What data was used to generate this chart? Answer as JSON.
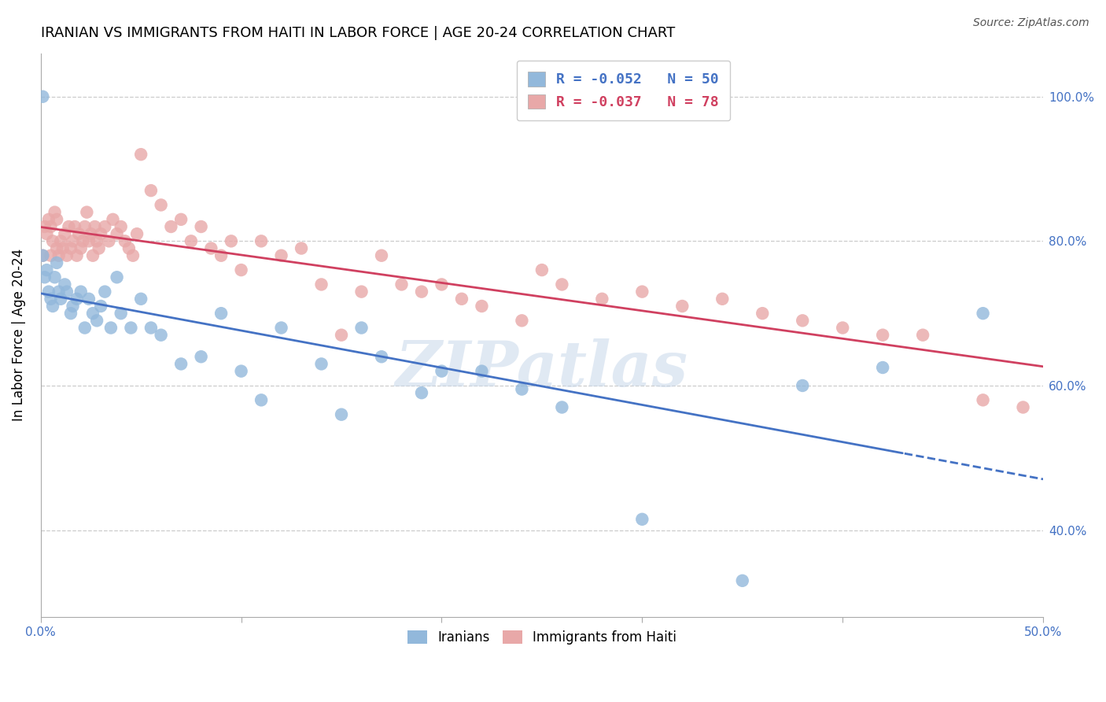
{
  "title": "IRANIAN VS IMMIGRANTS FROM HAITI IN LABOR FORCE | AGE 20-24 CORRELATION CHART",
  "source": "Source: ZipAtlas.com",
  "ylabel": "In Labor Force | Age 20-24",
  "xlim": [
    0.0,
    0.5
  ],
  "ylim": [
    0.28,
    1.06
  ],
  "legend_blue_r": "R = -0.052",
  "legend_blue_n": "N = 50",
  "legend_pink_r": "R = -0.037",
  "legend_pink_n": "N = 78",
  "blue_color": "#92b8db",
  "pink_color": "#e8a8a8",
  "blue_line_color": "#4472c4",
  "pink_line_color": "#d04060",
  "iranians_x": [
    0.001,
    0.002,
    0.003,
    0.004,
    0.005,
    0.006,
    0.007,
    0.008,
    0.009,
    0.01,
    0.012,
    0.013,
    0.015,
    0.016,
    0.018,
    0.02,
    0.022,
    0.024,
    0.026,
    0.028,
    0.03,
    0.032,
    0.035,
    0.038,
    0.04,
    0.045,
    0.05,
    0.055,
    0.06,
    0.07,
    0.08,
    0.09,
    0.1,
    0.11,
    0.12,
    0.14,
    0.15,
    0.16,
    0.17,
    0.19,
    0.2,
    0.22,
    0.24,
    0.26,
    0.3,
    0.35,
    0.38,
    0.42,
    0.47,
    0.001
  ],
  "iranians_y": [
    0.78,
    0.75,
    0.76,
    0.73,
    0.72,
    0.71,
    0.75,
    0.77,
    0.73,
    0.72,
    0.74,
    0.73,
    0.7,
    0.71,
    0.72,
    0.73,
    0.68,
    0.72,
    0.7,
    0.69,
    0.71,
    0.73,
    0.68,
    0.75,
    0.7,
    0.68,
    0.72,
    0.68,
    0.67,
    0.63,
    0.64,
    0.7,
    0.62,
    0.58,
    0.68,
    0.63,
    0.56,
    0.68,
    0.64,
    0.59,
    0.62,
    0.62,
    0.595,
    0.57,
    0.415,
    0.33,
    0.6,
    0.625,
    0.7,
    1.0
  ],
  "haiti_x": [
    0.001,
    0.002,
    0.003,
    0.004,
    0.005,
    0.005,
    0.006,
    0.007,
    0.008,
    0.008,
    0.009,
    0.01,
    0.011,
    0.012,
    0.013,
    0.014,
    0.015,
    0.016,
    0.017,
    0.018,
    0.019,
    0.02,
    0.021,
    0.022,
    0.023,
    0.024,
    0.025,
    0.026,
    0.027,
    0.028,
    0.029,
    0.03,
    0.032,
    0.034,
    0.036,
    0.038,
    0.04,
    0.042,
    0.044,
    0.046,
    0.048,
    0.05,
    0.055,
    0.06,
    0.065,
    0.07,
    0.075,
    0.08,
    0.085,
    0.09,
    0.095,
    0.1,
    0.11,
    0.12,
    0.13,
    0.14,
    0.15,
    0.16,
    0.17,
    0.18,
    0.19,
    0.2,
    0.21,
    0.22,
    0.24,
    0.25,
    0.26,
    0.28,
    0.3,
    0.32,
    0.34,
    0.36,
    0.38,
    0.4,
    0.42,
    0.44,
    0.47,
    0.49
  ],
  "haiti_y": [
    0.78,
    0.82,
    0.81,
    0.83,
    0.78,
    0.82,
    0.8,
    0.84,
    0.79,
    0.83,
    0.78,
    0.8,
    0.79,
    0.81,
    0.78,
    0.82,
    0.79,
    0.8,
    0.82,
    0.78,
    0.81,
    0.79,
    0.8,
    0.82,
    0.84,
    0.8,
    0.81,
    0.78,
    0.82,
    0.8,
    0.79,
    0.81,
    0.82,
    0.8,
    0.83,
    0.81,
    0.82,
    0.8,
    0.79,
    0.78,
    0.81,
    0.92,
    0.87,
    0.85,
    0.82,
    0.83,
    0.8,
    0.82,
    0.79,
    0.78,
    0.8,
    0.76,
    0.8,
    0.78,
    0.79,
    0.74,
    0.67,
    0.73,
    0.78,
    0.74,
    0.73,
    0.74,
    0.72,
    0.71,
    0.69,
    0.76,
    0.74,
    0.72,
    0.73,
    0.71,
    0.72,
    0.7,
    0.69,
    0.68,
    0.67,
    0.67,
    0.58,
    0.57
  ],
  "ytick_positions": [
    0.4,
    0.6,
    0.8,
    1.0
  ],
  "ytick_labels": [
    "40.0%",
    "60.0%",
    "80.0%",
    "100.0%"
  ],
  "xtick_positions": [
    0.0,
    0.1,
    0.2,
    0.3,
    0.4,
    0.5
  ],
  "xtick_labels_show_only_ends": true,
  "grid_color": "#cccccc",
  "axis_color": "#aaaaaa",
  "tick_color": "#4472c4",
  "title_fontsize": 13,
  "axis_fontsize": 11,
  "legend_fontsize": 13
}
